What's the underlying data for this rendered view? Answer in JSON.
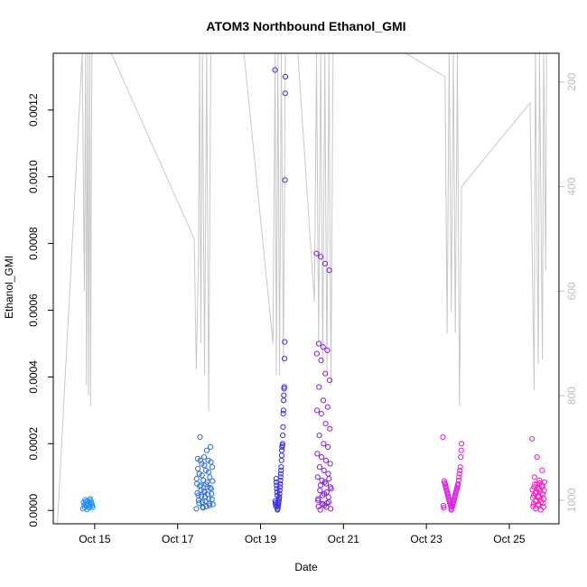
{
  "chart_data": {
    "type": "scatter",
    "title": "ATOM3 Northbound Ethanol_GMI",
    "xlabel": "Date",
    "ylabel": "Ethanol_GMI",
    "x_range_days": [
      14.0,
      26.2
    ],
    "ylim": [
      -4e-05,
      0.00137
    ],
    "x_ticks": [
      {
        "label": "Oct 15",
        "day": 15
      },
      {
        "label": "Oct 17",
        "day": 17
      },
      {
        "label": "Oct 19",
        "day": 19
      },
      {
        "label": "Oct 21",
        "day": 21
      },
      {
        "label": "Oct 23",
        "day": 23
      },
      {
        "label": "Oct 25",
        "day": 25
      }
    ],
    "y_ticks": [
      {
        "label": "0.0000",
        "value": 0.0
      },
      {
        "label": "0.0002",
        "value": 0.0002
      },
      {
        "label": "0.0004",
        "value": 0.0004
      },
      {
        "label": "0.0006",
        "value": 0.0006
      },
      {
        "label": "0.0008",
        "value": 0.0008
      },
      {
        "label": "0.0010",
        "value": 0.001
      },
      {
        "label": "0.0012",
        "value": 0.0012
      }
    ],
    "secondary_axis": {
      "side": "right",
      "reversed": true,
      "range": [
        145,
        1045
      ],
      "ticks": [
        {
          "label": "200",
          "value": 200
        },
        {
          "label": "400",
          "value": 400
        },
        {
          "label": "600",
          "value": 600
        },
        {
          "label": "800",
          "value": 800
        },
        {
          "label": "1000",
          "value": 1000
        }
      ],
      "color": "#bdbdbd"
    },
    "grid": false,
    "point_style": "open-circle",
    "colors": {
      "flight1": "#1e90ff",
      "flight2": "#2a6fe0",
      "flight3": "#3a2ee8",
      "flight4": "#8a1ee8",
      "flight5": "#e01ee0",
      "flight6": "#ff19c8",
      "altitude_line": "#c8c8c8"
    },
    "flights": [
      {
        "color_key": "flight1",
        "clusters": [
          {
            "day_min": 14.72,
            "day_max": 14.95,
            "points": [
              5e-06,
              1e-05,
              1.5e-05,
              2e-05,
              2.5e-05,
              3e-05,
              3.5e-05,
              1.2e-05,
              8e-06,
              1.8e-05,
              2.2e-05,
              2.8e-05,
              3e-06,
              1.4e-05,
              2e-05,
              2.6e-05,
              3.2e-05,
              9e-06,
              1.6e-05,
              2.4e-05
            ]
          }
        ]
      },
      {
        "color_key": "flight2",
        "clusters": [
          {
            "day_min": 17.45,
            "day_max": 17.85,
            "points": [
              5e-06,
              1e-05,
              2e-05,
              3e-05,
              4e-05,
              5e-05,
              6e-05,
              7e-05,
              8e-05,
              9e-05,
              0.0001,
              0.00011,
              0.00012,
              0.00013,
              0.00014,
              0.00015,
              0.000155,
              0.00016,
              0.00019,
              0.00022,
              1.2e-05,
              1.8e-05,
              2.5e-05,
              3.5e-05,
              4.5e-05,
              5.5e-05,
              6.5e-05,
              7.5e-05,
              8.5e-05,
              9.5e-05,
              8e-06,
              1.5e-05,
              2.2e-05,
              2.8e-05,
              3.3e-05,
              4.2e-05,
              4.8e-05,
              5.2e-05,
              5.8e-05,
              6.8e-05,
              7.2e-05,
              7.8e-05,
              8.8e-05,
              0.000105,
              0.000115,
              0.000125,
              0.000135,
              0.000145,
              0.00015,
              0.00018
            ]
          }
        ]
      },
      {
        "color_key": "flight3",
        "clusters": [
          {
            "day_min": 19.35,
            "day_max": 19.6,
            "points": [
              0.00132,
              0.0013,
              0.00125,
              0.00099,
              0.000505,
              0.000455,
              0.00037,
              0.000365,
              0.000345,
              0.00033,
              0.0003,
              0.00029,
              0.00025,
              0.000225,
              0.0002,
              0.000195,
              0.00019,
              0.00018,
              0.000165,
              0.00015,
              0.00013,
              0.00012,
              0.00011,
              0.0001,
              9e-05,
              8e-05,
              7e-05,
              6e-05,
              5e-05,
              4e-05,
              3.5e-05,
              3e-05,
              2.5e-05,
              2e-05,
              1.5e-05,
              1e-05,
              5e-06,
              2e-06,
              4.5e-05,
              5.5e-05,
              6.5e-05,
              7.5e-05,
              8.5e-05,
              9.5e-05,
              1.2e-05,
              1.8e-05,
              2.2e-05,
              2.8e-05
            ]
          }
        ]
      },
      {
        "color_key": "flight4",
        "clusters": [
          {
            "day_min": 20.35,
            "day_max": 20.7,
            "points": [
              0.00077,
              0.00076,
              0.00074,
              0.00072,
              0.0005,
              0.00049,
              0.00048,
              0.00047,
              0.00045,
              0.00041,
              0.00039,
              0.00037,
              0.00033,
              0.00031,
              0.0003,
              0.00029,
              0.00026,
              0.000245,
              0.000225,
              0.0002,
              0.00019,
              0.00017,
              0.00016,
              0.00015,
              0.00014,
              0.00013,
              0.00012,
              0.00011,
              0.0001,
              9e-05,
              8e-05,
              7e-05,
              6e-05,
              5e-05,
              4e-05,
              3e-05,
              2e-05,
              1e-05,
              5e-06,
              2e-06,
              1.5e-05,
              2.5e-05,
              3.5e-05,
              4.5e-05,
              5.5e-05,
              6.5e-05,
              7.5e-05,
              8.5e-05,
              9.5e-05,
              1.2e-05,
              1.8e-05,
              2.2e-05
            ]
          }
        ]
      },
      {
        "color_key": "flight5",
        "clusters": [
          {
            "day_min": 23.4,
            "day_max": 23.85,
            "points": [
              0.00022,
              0.0002,
              0.00018,
              0.00016,
              0.00013,
              0.00012,
              0.00011,
              0.0001,
              9e-05,
              8e-05,
              7.5e-05,
              7e-05,
              6.5e-05,
              6e-05,
              5.5e-05,
              5e-05,
              4.5e-05,
              4e-05,
              3.5e-05,
              3e-05,
              2.5e-05,
              2e-05,
              1.5e-05,
              1e-05,
              5e-06,
              2e-06,
              1.2e-05,
              1.8e-05,
              2.2e-05,
              2.8e-05,
              3.2e-05,
              3.8e-05,
              4.2e-05,
              4.8e-05,
              5.2e-05,
              5.8e-05,
              6.2e-05,
              6.8e-05,
              7.2e-05,
              7.8e-05,
              8.2e-05,
              8.8e-05,
              8e-06,
              1.4e-05
            ]
          }
        ]
      },
      {
        "color_key": "flight6",
        "clusters": [
          {
            "day_min": 25.55,
            "day_max": 25.85,
            "points": [
              0.000215,
              0.00016,
              0.00012,
              0.0001,
              9e-05,
              8.5e-05,
              8e-05,
              7.5e-05,
              7e-05,
              6.5e-05,
              6e-05,
              5.5e-05,
              5e-05,
              4.5e-05,
              4e-05,
              3.5e-05,
              3e-05,
              2.5e-05,
              2e-05,
              1.5e-05,
              1e-05,
              5e-06,
              2e-06,
              1.2e-05,
              1.8e-05,
              2.2e-05,
              2.8e-05,
              3.2e-05,
              3.8e-05,
              4.2e-05,
              4.8e-05,
              5.2e-05,
              5.8e-05,
              6.2e-05,
              6.8e-05,
              7.2e-05,
              7.8e-05,
              8.2e-05
            ]
          }
        ]
      }
    ],
    "altitude_profile": [
      [
        14.1,
        1045
      ],
      [
        14.7,
        145
      ],
      [
        14.75,
        600
      ],
      [
        14.78,
        145
      ],
      [
        14.8,
        780
      ],
      [
        14.83,
        145
      ],
      [
        14.85,
        800
      ],
      [
        14.88,
        145
      ],
      [
        14.9,
        820
      ],
      [
        14.93,
        145
      ],
      [
        15.4,
        145
      ],
      [
        17.4,
        500
      ],
      [
        17.45,
        750
      ],
      [
        17.5,
        540
      ],
      [
        17.53,
        145
      ],
      [
        17.56,
        700
      ],
      [
        17.6,
        145
      ],
      [
        17.65,
        760
      ],
      [
        17.7,
        145
      ],
      [
        17.75,
        830
      ],
      [
        17.8,
        145
      ],
      [
        18.6,
        145
      ],
      [
        19.3,
        700
      ],
      [
        19.35,
        145
      ],
      [
        19.38,
        760
      ],
      [
        19.42,
        145
      ],
      [
        19.46,
        760
      ],
      [
        19.5,
        145
      ],
      [
        19.55,
        740
      ],
      [
        19.6,
        145
      ],
      [
        19.9,
        145
      ],
      [
        20.3,
        620
      ],
      [
        20.35,
        145
      ],
      [
        20.4,
        700
      ],
      [
        20.45,
        145
      ],
      [
        20.5,
        740
      ],
      [
        20.55,
        145
      ],
      [
        20.6,
        760
      ],
      [
        20.65,
        145
      ],
      [
        20.7,
        780
      ],
      [
        20.75,
        145
      ],
      [
        22.5,
        145
      ],
      [
        23.45,
        190
      ],
      [
        23.5,
        680
      ],
      [
        23.55,
        145
      ],
      [
        23.6,
        640
      ],
      [
        23.65,
        145
      ],
      [
        23.7,
        680
      ],
      [
        23.75,
        145
      ],
      [
        23.8,
        820
      ],
      [
        23.85,
        400
      ],
      [
        25.5,
        240
      ],
      [
        25.6,
        790
      ],
      [
        25.63,
        145
      ],
      [
        25.7,
        740
      ],
      [
        25.73,
        145
      ],
      [
        25.8,
        730
      ],
      [
        25.83,
        145
      ],
      [
        25.88,
        560
      ],
      [
        25.9,
        145
      ],
      [
        26.1,
        145
      ]
    ]
  }
}
